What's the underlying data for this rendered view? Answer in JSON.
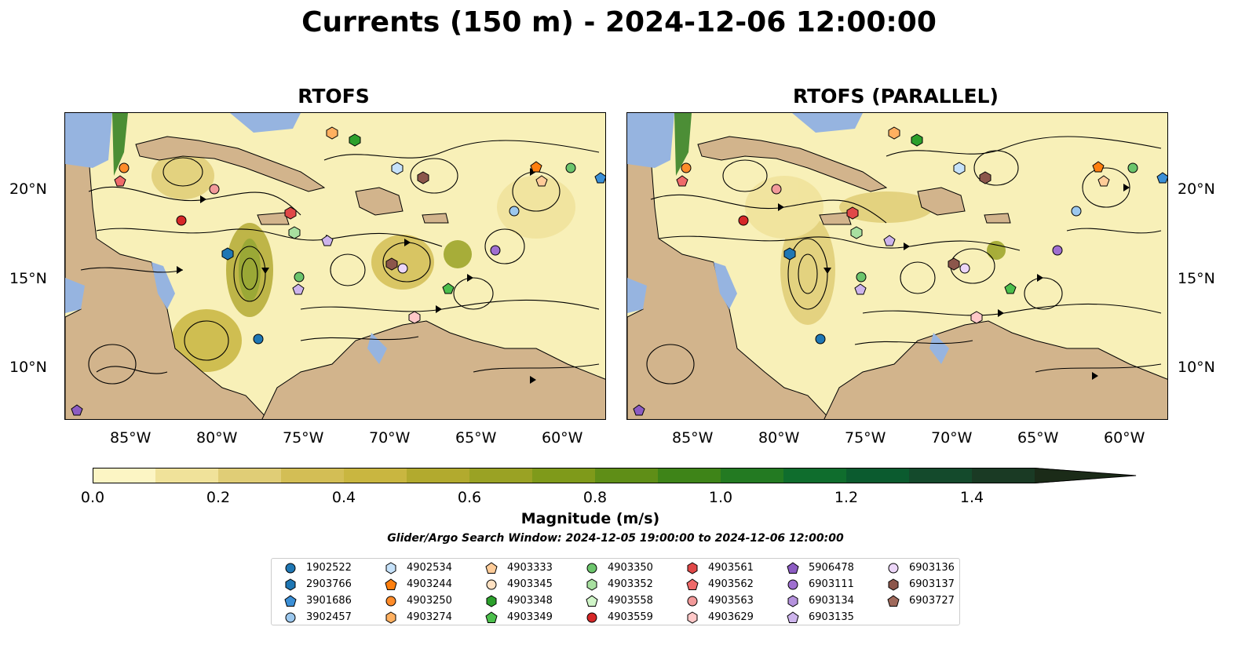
{
  "figure": {
    "title": "Currents (150 m) - 2024-12-06 12:00:00",
    "panels": [
      {
        "title": "RTOFS"
      },
      {
        "title": "RTOFS (PARALLEL)"
      }
    ],
    "lat_labels": [
      "20°N",
      "15°N",
      "10°N"
    ],
    "lon_labels": [
      "85°W",
      "80°W",
      "75°W",
      "70°W",
      "65°W",
      "60°W"
    ],
    "colorbar": {
      "label": "Magnitude (m/s)",
      "ticks": [
        "0.0",
        "0.2",
        "0.4",
        "0.6",
        "0.8",
        "1.0",
        "1.2",
        "1.4"
      ],
      "range": [
        0.0,
        1.5
      ],
      "extend": "max",
      "colors": [
        "#fcf5c4",
        "#f0e29a",
        "#e0cd76",
        "#d3be55",
        "#c9b640",
        "#b2aa2e",
        "#9aa224",
        "#7f9a1a",
        "#5f8e17",
        "#3e8418",
        "#237a22",
        "#0f6d2d",
        "#0b5b2f",
        "#144a2c",
        "#1a3a24",
        "#1b2b18"
      ]
    },
    "search_window": "Glider/Argo Search Window: 2024-12-05 19:00:00 to 2024-12-06 12:00:00",
    "map_colors": {
      "land": "#d2b48c",
      "water_shallow": "#96b4e0",
      "ocean_low": "#f8f0b8",
      "border": "#000000"
    }
  },
  "legend": {
    "items": [
      {
        "id": "1902522",
        "marker": "circle",
        "color": "#1f77b4"
      },
      {
        "id": "2903766",
        "marker": "hexagon",
        "color": "#1f77b4"
      },
      {
        "id": "3901686",
        "marker": "pentagon",
        "color": "#3b8fd6"
      },
      {
        "id": "3902457",
        "marker": "circle",
        "color": "#9cc8ee"
      },
      {
        "id": "4902534",
        "marker": "hexagon",
        "color": "#c6e2fa"
      },
      {
        "id": "4903244",
        "marker": "pentagon",
        "color": "#ff7f0e"
      },
      {
        "id": "4903250",
        "marker": "circle",
        "color": "#ff8c2a"
      },
      {
        "id": "4903274",
        "marker": "hexagon",
        "color": "#ffb060"
      },
      {
        "id": "4903333",
        "marker": "pentagon",
        "color": "#ffcc99"
      },
      {
        "id": "4903345",
        "marker": "circle",
        "color": "#ffe1c2"
      },
      {
        "id": "4903348",
        "marker": "hexagon",
        "color": "#2ca02c"
      },
      {
        "id": "4903349",
        "marker": "pentagon",
        "color": "#4cbf4c"
      },
      {
        "id": "4903350",
        "marker": "circle",
        "color": "#6cc56c"
      },
      {
        "id": "4903352",
        "marker": "hexagon",
        "color": "#a8e0a0"
      },
      {
        "id": "4903558",
        "marker": "pentagon",
        "color": "#d0f5c8"
      },
      {
        "id": "4903559",
        "marker": "circle",
        "color": "#d62728"
      },
      {
        "id": "4903561",
        "marker": "hexagon",
        "color": "#e04848"
      },
      {
        "id": "4903562",
        "marker": "pentagon",
        "color": "#ef6a6a"
      },
      {
        "id": "4903563",
        "marker": "circle",
        "color": "#f29a9a"
      },
      {
        "id": "4903629",
        "marker": "hexagon",
        "color": "#ffc8c8"
      },
      {
        "id": "5906478",
        "marker": "pentagon",
        "color": "#8c5cc2"
      },
      {
        "id": "6903111",
        "marker": "circle",
        "color": "#9f6fd0"
      },
      {
        "id": "6903134",
        "marker": "hexagon",
        "color": "#b592dd"
      },
      {
        "id": "6903135",
        "marker": "pentagon",
        "color": "#cdb4ec"
      },
      {
        "id": "6903136",
        "marker": "circle",
        "color": "#ecd6f8"
      },
      {
        "id": "6903137",
        "marker": "hexagon",
        "color": "#8c564b"
      },
      {
        "id": "6903727",
        "marker": "pentagon",
        "color": "#a06a5c"
      }
    ]
  }
}
